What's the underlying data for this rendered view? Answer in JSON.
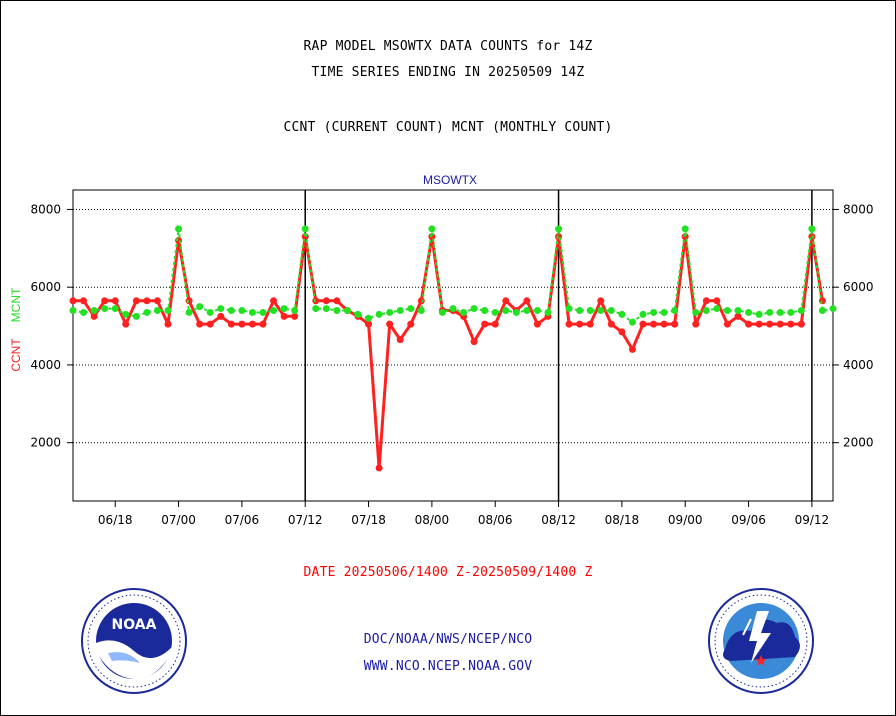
{
  "header": {
    "title_line1": "RAP MODEL MSOWTX DATA COUNTS for 14Z",
    "title_line2": "TIME SERIES ENDING IN 20250509 14Z",
    "subtitle": "CCNT (CURRENT COUNT) MCNT (MONTHLY COUNT)"
  },
  "footer": {
    "date_range": "DATE 20250506/1400 Z-20250509/1400 Z",
    "org": "DOC/NOAA/NWS/NCEP/NCO",
    "url": "WWW.NCO.NCEP.NOAA.GOV"
  },
  "logos": {
    "left": {
      "name": "NOAA",
      "ring_text": "NATIONAL OCEANIC AND ATMOSPHERIC ADMINISTRATION · U.S. DEPARTMENT OF COMMERCE"
    },
    "right": {
      "ring_text": "NATIONAL WEATHER SERVICE"
    }
  },
  "chart_data": {
    "type": "line",
    "title": "MSOWTX",
    "ylabel_ccnt": "CCNT",
    "ylabel_mcnt": "MCNT",
    "x_tick_labels": [
      "06/18",
      "07/00",
      "07/06",
      "07/12",
      "07/18",
      "08/00",
      "08/06",
      "08/12",
      "08/18",
      "09/00",
      "09/06",
      "09/12"
    ],
    "x_tick_index": [
      4,
      10,
      16,
      22,
      28,
      34,
      40,
      46,
      52,
      58,
      64,
      70
    ],
    "day_boundaries_index": [
      22,
      46,
      70
    ],
    "y_ticks": [
      2000,
      4000,
      6000,
      8000
    ],
    "ylim": [
      500,
      8500
    ],
    "xlim": [
      0,
      72
    ],
    "grid": true,
    "colors": {
      "ccnt": "#ff2020",
      "mcnt": "#22e022",
      "title": "#1a1aa6"
    },
    "series": [
      {
        "name": "CCNT",
        "x": [
          0,
          1,
          2,
          3,
          4,
          5,
          6,
          7,
          8,
          9,
          10,
          11,
          12,
          13,
          14,
          15,
          16,
          17,
          18,
          19,
          20,
          21,
          22,
          23,
          24,
          25,
          26,
          27,
          28,
          29,
          30,
          31,
          32,
          33,
          34,
          35,
          36,
          37,
          38,
          39,
          40,
          41,
          42,
          43,
          44,
          45,
          46,
          47,
          48,
          49,
          50,
          51,
          52,
          53,
          54,
          55,
          56,
          57,
          58,
          59,
          60,
          61,
          62,
          63,
          64,
          65,
          66,
          67,
          68,
          69,
          70,
          71
        ],
        "values": [
          5650,
          5650,
          5250,
          5650,
          5650,
          5050,
          5650,
          5650,
          5650,
          5050,
          7200,
          5650,
          5050,
          5050,
          5250,
          5050,
          5050,
          5050,
          5050,
          5650,
          5250,
          5250,
          7300,
          5650,
          5650,
          5650,
          5400,
          5250,
          5050,
          1350,
          5050,
          4650,
          5050,
          5650,
          7300,
          5400,
          5400,
          5250,
          4600,
          5050,
          5050,
          5650,
          5400,
          5650,
          5050,
          5250,
          7300,
          5050,
          5050,
          5050,
          5650,
          5050,
          4850,
          4400,
          5050,
          5050,
          5050,
          5050,
          7300,
          5050,
          5650,
          5650,
          5050,
          5250,
          5050,
          5050,
          5050,
          5050,
          5050,
          5050,
          7300,
          5650
        ]
      },
      {
        "name": "MCNT",
        "x": [
          0,
          1,
          2,
          3,
          4,
          5,
          6,
          7,
          8,
          9,
          10,
          11,
          12,
          13,
          14,
          15,
          16,
          17,
          18,
          19,
          20,
          21,
          22,
          23,
          24,
          25,
          26,
          27,
          28,
          29,
          30,
          31,
          32,
          33,
          34,
          35,
          36,
          37,
          38,
          39,
          40,
          41,
          42,
          43,
          44,
          45,
          46,
          47,
          48,
          49,
          50,
          51,
          52,
          53,
          54,
          55,
          56,
          57,
          58,
          59,
          60,
          61,
          62,
          63,
          64,
          65,
          66,
          67,
          68,
          69,
          70,
          71,
          72
        ],
        "values": [
          5400,
          5350,
          5400,
          5450,
          5450,
          5300,
          5250,
          5350,
          5400,
          5400,
          7500,
          5350,
          5500,
          5350,
          5450,
          5400,
          5400,
          5350,
          5350,
          5400,
          5450,
          5400,
          7500,
          5450,
          5450,
          5400,
          5400,
          5300,
          5200,
          5300,
          5350,
          5400,
          5450,
          5400,
          7500,
          5350,
          5450,
          5350,
          5450,
          5400,
          5350,
          5400,
          5350,
          5400,
          5400,
          5350,
          7500,
          5450,
          5400,
          5400,
          5400,
          5400,
          5300,
          5100,
          5300,
          5350,
          5350,
          5400,
          7500,
          5350,
          5400,
          5450,
          5400,
          5400,
          5350,
          5300,
          5350,
          5350,
          5350,
          5400,
          7500,
          5400,
          5450
        ]
      }
    ]
  }
}
